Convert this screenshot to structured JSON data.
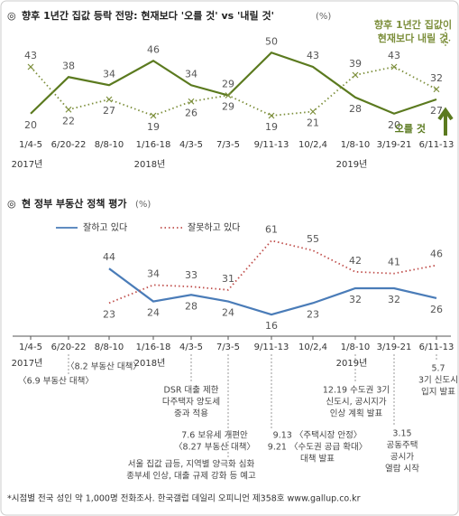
{
  "chart_data": [
    {
      "type": "line",
      "title": "향후 1년간 집값 등락 전망: 현재보다 '오를 것' vs '내릴 것'",
      "unit": "(%)",
      "categories": [
        "1/4-5",
        "6/20-22",
        "8/8-10",
        "1/16-18",
        "4/3-5",
        "7/3-5",
        "9/11-13",
        "10/2,4",
        "1/8-10",
        "3/19-21",
        "6/11-13"
      ],
      "year_labels": [
        "2017년",
        null,
        null,
        "2018년",
        null,
        null,
        null,
        null,
        "2019년",
        null,
        null
      ],
      "ylim": [
        15,
        55
      ],
      "legend_note": "향후 1년간 집값이",
      "series": [
        {
          "name": "오를 것",
          "color": "#5b7a1f",
          "style": "solid",
          "values": [
            20,
            38,
            34,
            46,
            34,
            29,
            50,
            43,
            28,
            20,
            27
          ]
        },
        {
          "name": "현재보다 내릴 것",
          "color": "#7d8f3c",
          "style": "dotted",
          "values": [
            43,
            22,
            27,
            19,
            26,
            29,
            19,
            21,
            39,
            43,
            32
          ]
        }
      ]
    },
    {
      "type": "line",
      "title": "현 정부 부동산 정책 평가",
      "unit": "(%)",
      "categories": [
        "1/4-5",
        "6/20-22",
        "8/8-10",
        "1/16-18",
        "4/3-5",
        "7/3-5",
        "9/11-13",
        "10/2,4",
        "1/8-10",
        "3/19-21",
        "6/11-13"
      ],
      "year_labels": [
        "2017년",
        null,
        null,
        "2018년",
        null,
        null,
        null,
        null,
        "2019년",
        null,
        null
      ],
      "ylim": [
        10,
        65
      ],
      "series": [
        {
          "name": "잘하고 있다",
          "color": "#4a7cb8",
          "style": "solid",
          "values": [
            null,
            null,
            44,
            24,
            28,
            24,
            16,
            23,
            32,
            32,
            26
          ]
        },
        {
          "name": "잘못하고 있다",
          "color": "#c0504d",
          "style": "dotted",
          "values": [
            null,
            null,
            23,
            34,
            33,
            31,
            61,
            55,
            42,
            41,
            46
          ]
        }
      ],
      "annotations": [
        {
          "lines": [
            "〈6.9 부동산 대책〉"
          ]
        },
        {
          "lines": [
            "〈8.2 부동산 대책〉"
          ]
        },
        {
          "lines": [
            "DSR 대출 제한",
            "다주택자 양도세",
            "중과 적용"
          ]
        },
        {
          "lines": [
            "7.6 보유세 개편안",
            "〈8.27 부동산 대책〉"
          ]
        },
        {
          "lines": [
            "서울 집값 급등, 지역별 양극화 심화",
            "종부세 인상, 대출 규제 강화 등 예고"
          ]
        },
        {
          "lines": [
            "9.13 〈주택시장 안정〉",
            "9.21 〈수도권 공급 확대〉",
            "대책 발표"
          ]
        },
        {
          "lines": [
            "12.19 수도권 3기",
            "신도시, 공시지가",
            "인상 계획 발표"
          ]
        },
        {
          "lines": [
            "3.15",
            "공동주택",
            "공시가",
            "열람 시작"
          ]
        },
        {
          "lines": [
            "5.7",
            "3기 신도시",
            "입지 발표"
          ]
        }
      ]
    }
  ],
  "footer": "*시점별 전국 성인 약 1,000명 전화조사. 한국갤럽 데일리 오피니언 제358호 www.gallup.co.kr"
}
